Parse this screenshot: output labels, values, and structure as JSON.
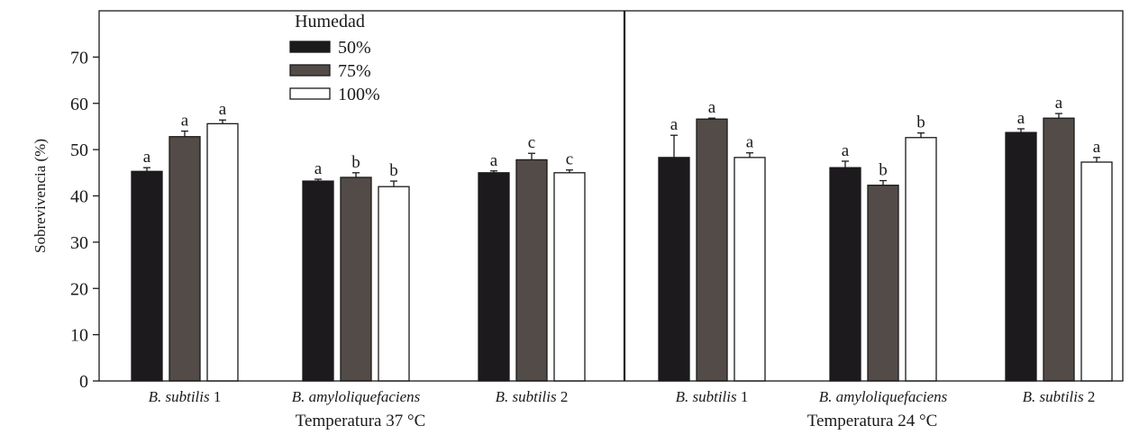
{
  "chart_data": {
    "type": "bar",
    "ylabel": "Sobrevivencia (%)",
    "ylim": [
      0,
      80
    ],
    "yticks": [
      0,
      10,
      20,
      30,
      40,
      50,
      60,
      70
    ],
    "legend": {
      "title": "Humedad",
      "placement": "top-left",
      "entries": [
        "50%",
        "75%",
        "100%"
      ]
    },
    "series_colors": [
      "#1c1a1d",
      "#534b47",
      "#ffffff"
    ],
    "panels": [
      {
        "condition": "Temperatura 37 °C",
        "groups": [
          {
            "species": "B. subtilis",
            "suffix": " 1",
            "values": [
              45.3,
              52.8,
              55.6
            ],
            "errors": [
              0.8,
              1.2,
              0.8
            ],
            "letters": [
              "a",
              "a",
              "a"
            ]
          },
          {
            "species": "B. amyloliquefaciens",
            "suffix": "",
            "values": [
              43.2,
              44.0,
              42.0
            ],
            "errors": [
              0.4,
              1.0,
              1.2
            ],
            "letters": [
              "a",
              "b",
              "b"
            ]
          },
          {
            "species": "B. subtilis",
            "suffix": " 2",
            "values": [
              45.0,
              47.8,
              45.0
            ],
            "errors": [
              0.4,
              1.4,
              0.6
            ],
            "letters": [
              "a",
              "c",
              "c"
            ]
          }
        ]
      },
      {
        "condition": "Temperatura 24 °C",
        "groups": [
          {
            "species": "B. subtilis",
            "suffix": " 1",
            "values": [
              48.3,
              56.6,
              48.3
            ],
            "errors": [
              4.8,
              0.2,
              1.0
            ],
            "letters": [
              "a",
              "a",
              "a"
            ]
          },
          {
            "species": "B. amyloliquefaciens",
            "suffix": "",
            "values": [
              46.1,
              42.3,
              52.6
            ],
            "errors": [
              1.4,
              1.0,
              1.0
            ],
            "letters": [
              "a",
              "b",
              "b"
            ]
          },
          {
            "species": "B. subtilis",
            "suffix": " 2",
            "values": [
              53.7,
              56.8,
              47.3
            ],
            "errors": [
              0.8,
              1.0,
              1.0
            ],
            "letters": [
              "a",
              "a",
              "a"
            ]
          }
        ]
      }
    ]
  }
}
